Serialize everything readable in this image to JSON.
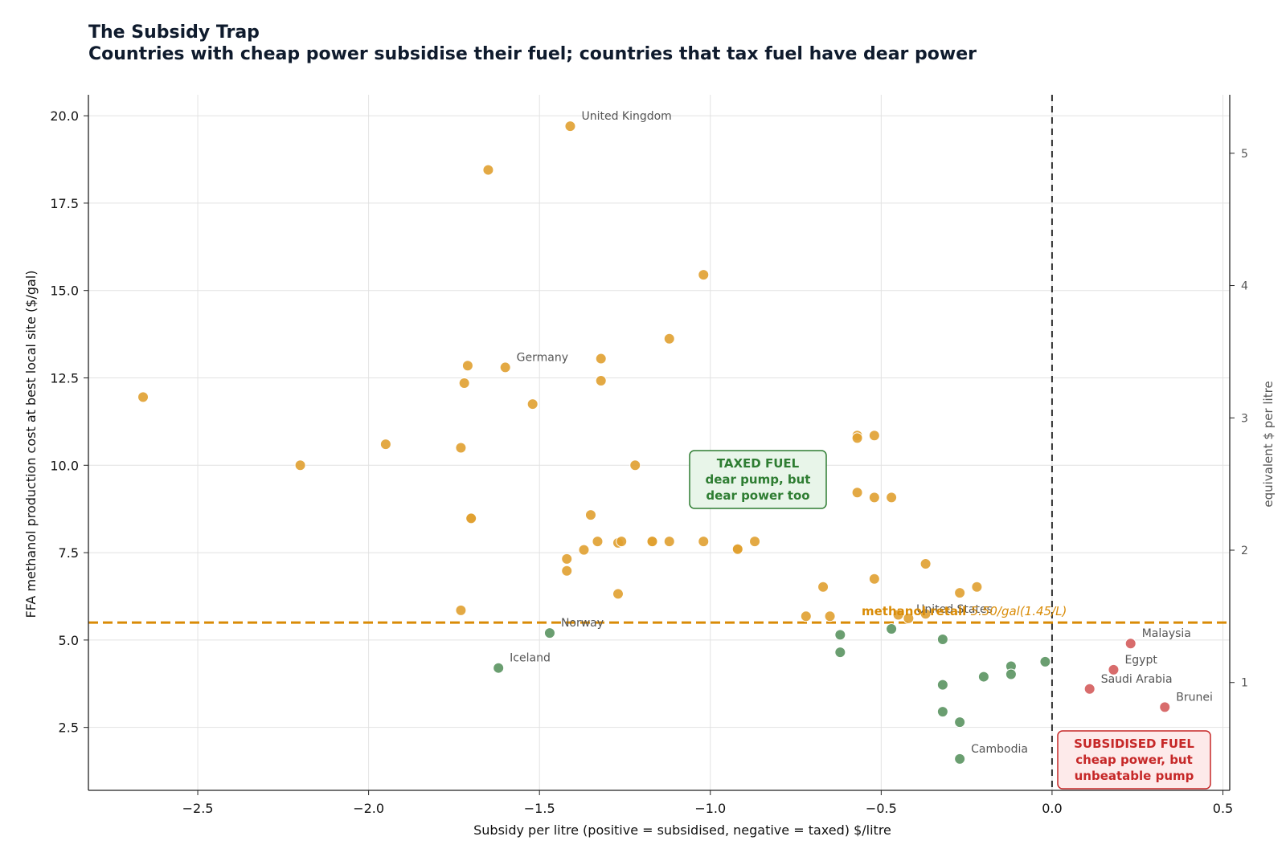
{
  "title": "The Subsidy Trap",
  "subtitle": "Countries with cheap power subsidise their fuel; countries that tax fuel have dear power",
  "chart_data": {
    "type": "scatter",
    "xlabel": "Subsidy per litre (positive = subsidised, negative = taxed)  $/litre",
    "ylabel": "FFA methanol production cost at best local site ($/gal)",
    "y2label": "equivalent $ per litre",
    "xlim": [
      -2.82,
      0.52
    ],
    "ylim": [
      0.7,
      20.6
    ],
    "xticks": [
      -2.5,
      -2.0,
      -1.5,
      -1.0,
      -0.5,
      0.0,
      0.5
    ],
    "xtick_labels": [
      "−2.5",
      "−2.0",
      "−1.5",
      "−1.0",
      "−0.5",
      "0.0",
      "0.5"
    ],
    "yticks": [
      2.5,
      5.0,
      7.5,
      10.0,
      12.5,
      15.0,
      17.5,
      20.0
    ],
    "ytick_labels": [
      "2.5",
      "5.0",
      "7.5",
      "10.0",
      "12.5",
      "15.0",
      "17.5",
      "20.0"
    ],
    "y2ticks": [
      1,
      2,
      3,
      4,
      5
    ],
    "y2tick_labels": [
      "1",
      "2",
      "3",
      "4",
      "5"
    ],
    "grid": true,
    "vline": 0.0,
    "hline": {
      "y": 5.5,
      "label_bold": "methanol retail ",
      "label_rest": "5.50/gal(1.45/L)",
      "color": "#d98b06"
    },
    "series": [
      {
        "color": "#e0a030",
        "points": [
          [
            -2.66,
            11.95
          ],
          [
            -2.2,
            10.0
          ],
          [
            -1.95,
            10.6
          ],
          [
            -1.73,
            10.5
          ],
          [
            -1.73,
            5.85
          ],
          [
            -1.72,
            12.35
          ],
          [
            -1.71,
            12.85
          ],
          [
            -1.7,
            8.5
          ],
          [
            -1.7,
            8.48
          ],
          [
            -1.65,
            18.45
          ],
          [
            -1.6,
            12.8
          ],
          [
            -1.52,
            11.75
          ],
          [
            -1.41,
            19.7
          ],
          [
            -1.42,
            7.32
          ],
          [
            -1.42,
            6.98
          ],
          [
            -1.37,
            7.58
          ],
          [
            -1.35,
            8.58
          ],
          [
            -1.33,
            7.82
          ],
          [
            -1.32,
            13.05
          ],
          [
            -1.32,
            12.42
          ],
          [
            -1.27,
            7.78
          ],
          [
            -1.26,
            7.82
          ],
          [
            -1.27,
            6.32
          ],
          [
            -1.22,
            10.0
          ],
          [
            -1.17,
            7.82
          ],
          [
            -1.17,
            7.82
          ],
          [
            -1.12,
            13.62
          ],
          [
            -1.12,
            7.82
          ],
          [
            -1.02,
            15.45
          ],
          [
            -1.02,
            7.82
          ],
          [
            -0.92,
            7.62
          ],
          [
            -0.92,
            7.6
          ],
          [
            -0.87,
            7.82
          ],
          [
            -0.72,
            5.68
          ],
          [
            -0.67,
            6.52
          ],
          [
            -0.65,
            5.68
          ],
          [
            -0.57,
            10.85
          ],
          [
            -0.57,
            10.78
          ],
          [
            -0.57,
            9.22
          ],
          [
            -0.52,
            10.85
          ],
          [
            -0.52,
            9.08
          ],
          [
            -0.52,
            6.75
          ],
          [
            -0.47,
            9.08
          ],
          [
            -0.45,
            5.72
          ],
          [
            -0.42,
            5.62
          ],
          [
            -0.37,
            5.75
          ],
          [
            -0.37,
            7.18
          ],
          [
            -0.27,
            6.35
          ],
          [
            -0.22,
            6.52
          ]
        ]
      },
      {
        "color": "#5a9460",
        "points": [
          [
            -1.62,
            4.2
          ],
          [
            -1.47,
            5.2
          ],
          [
            -0.62,
            5.15
          ],
          [
            -0.62,
            4.65
          ],
          [
            -0.47,
            5.32
          ],
          [
            -0.32,
            5.02
          ],
          [
            -0.32,
            3.72
          ],
          [
            -0.32,
            2.95
          ],
          [
            -0.27,
            2.65
          ],
          [
            -0.27,
            1.6
          ],
          [
            -0.2,
            3.95
          ],
          [
            -0.12,
            4.25
          ],
          [
            -0.12,
            4.02
          ],
          [
            -0.02,
            4.38
          ]
        ]
      },
      {
        "color": "#d45c5c",
        "points": [
          [
            0.11,
            3.6
          ],
          [
            0.18,
            4.15
          ],
          [
            0.23,
            4.9
          ],
          [
            0.33,
            3.08
          ]
        ]
      }
    ],
    "labels": [
      {
        "text": "United Kingdom",
        "x": -1.41,
        "y": 19.7
      },
      {
        "text": "Germany",
        "x": -1.6,
        "y": 12.8
      },
      {
        "text": "Norway",
        "x": -1.47,
        "y": 5.2
      },
      {
        "text": "Iceland",
        "x": -1.62,
        "y": 4.2
      },
      {
        "text": "United States",
        "x": -0.43,
        "y": 5.6
      },
      {
        "text": "Cambodia",
        "x": -0.27,
        "y": 1.6
      },
      {
        "text": "Malaysia",
        "x": 0.23,
        "y": 4.9
      },
      {
        "text": "Egypt",
        "x": 0.18,
        "y": 4.15
      },
      {
        "text": "Saudi Arabia",
        "x": 0.11,
        "y": 3.6
      },
      {
        "text": "Brunei",
        "x": 0.33,
        "y": 3.08
      }
    ],
    "annotations": [
      {
        "lines": [
          "TAXED FUEL",
          "dear pump, but",
          "dear power too"
        ],
        "color": "#2e7d32",
        "bg": "#e8f5e9"
      },
      {
        "lines": [
          "SUBSIDISED FUEL",
          "cheap power, but",
          "unbeatable pump"
        ],
        "color": "#c62828",
        "bg": "#fdeaea"
      }
    ]
  }
}
